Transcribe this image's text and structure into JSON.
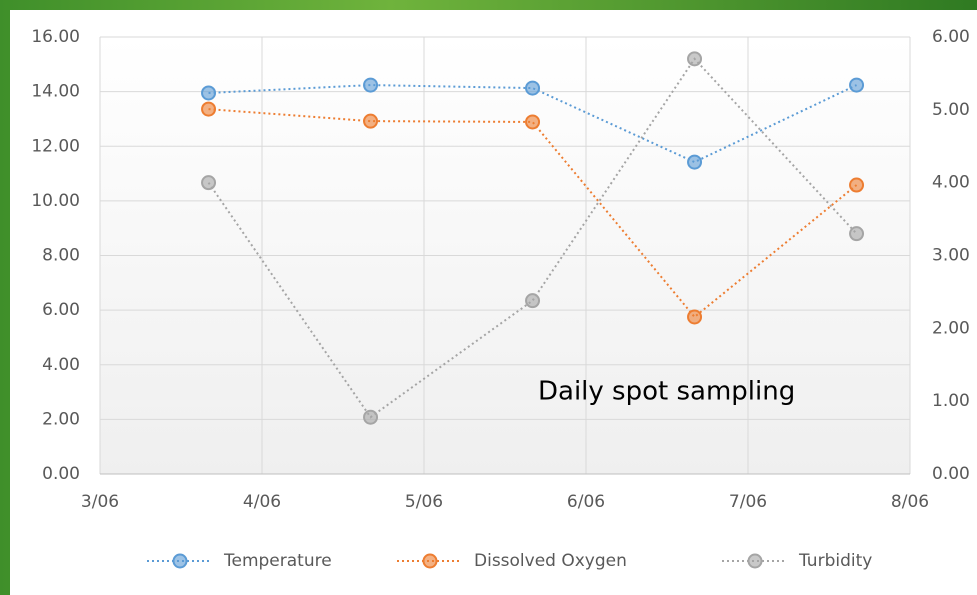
{
  "chart_data": {
    "type": "line",
    "annotation": "Daily spot sampling",
    "x": [
      3.67,
      4.67,
      5.67,
      6.67,
      7.67
    ],
    "series": [
      {
        "name": "Temperature",
        "color": "#5b9bd5",
        "values": [
          13.95,
          14.24,
          14.13,
          11.42,
          14.24
        ]
      },
      {
        "name": "Dissolved Oxygen",
        "color": "#ed7d31",
        "values": [
          13.36,
          12.92,
          12.89,
          5.75,
          10.58
        ]
      },
      {
        "name": "Turbidity",
        "color": "#a5a5a5",
        "axis": "y2",
        "values": [
          4.0,
          0.78,
          2.38,
          5.7,
          3.3
        ]
      }
    ],
    "xlim": [
      3,
      8
    ],
    "xticks": [
      {
        "value": 3,
        "label": "3/06"
      },
      {
        "value": 4,
        "label": "4/06"
      },
      {
        "value": 5,
        "label": "5/06"
      },
      {
        "value": 6,
        "label": "6/06"
      },
      {
        "value": 7,
        "label": "7/06"
      },
      {
        "value": 8,
        "label": "8/06"
      }
    ],
    "ylim": [
      0,
      16
    ],
    "yticks": [
      {
        "value": 0,
        "label": "0.00"
      },
      {
        "value": 2,
        "label": "2.00"
      },
      {
        "value": 4,
        "label": "4.00"
      },
      {
        "value": 6,
        "label": "6.00"
      },
      {
        "value": 8,
        "label": "8.00"
      },
      {
        "value": 10,
        "label": "10.00"
      },
      {
        "value": 12,
        "label": "12.00"
      },
      {
        "value": 14,
        "label": "14.00"
      },
      {
        "value": 16,
        "label": "16.00"
      }
    ],
    "y2lim": [
      0,
      6
    ],
    "y2ticks": [
      {
        "value": 0,
        "label": "0.00"
      },
      {
        "value": 1,
        "label": "1.00"
      },
      {
        "value": 2,
        "label": "2.00"
      },
      {
        "value": 3,
        "label": "3.00"
      },
      {
        "value": 4,
        "label": "4.00"
      },
      {
        "value": 5,
        "label": "5.00"
      },
      {
        "value": 6,
        "label": "6.00"
      }
    ],
    "grid": true,
    "legend": "bottom"
  }
}
